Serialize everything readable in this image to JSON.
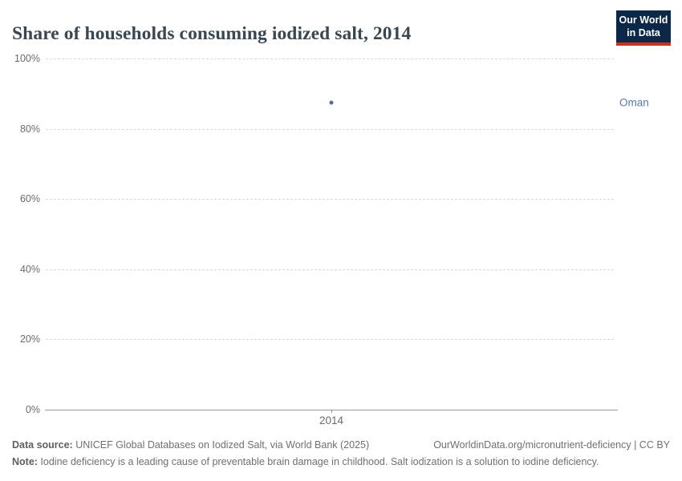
{
  "header": {
    "title": "Share of households consuming iodized salt, 2014",
    "logo": {
      "line1": "Our World",
      "line2": "in Data",
      "bg_color": "#0c2848",
      "accent_color": "#cf2e21"
    }
  },
  "chart_data": {
    "type": "scatter",
    "title": "Share of households consuming iodized salt, 2014",
    "x": [
      2014
    ],
    "xticks": [
      2014
    ],
    "series": [
      {
        "name": "Oman",
        "values": [
          87.5
        ],
        "color": "#4e6d9e",
        "label_color": "#5878ab"
      }
    ],
    "xlabel": "",
    "ylabel": "",
    "ylim": [
      0,
      100
    ],
    "yticks": [
      0,
      20,
      40,
      60,
      80,
      100
    ],
    "ytick_format": "{}%",
    "grid": "horizontal-dashed",
    "legend": "entity-label-right"
  },
  "colors": {
    "title": "#3a4650",
    "axis_text": "#6b6b6b",
    "gridline": "#d9d9d9",
    "axis_line": "#9a9a9a"
  },
  "footer": {
    "data_source_label": "Data source:",
    "data_source_text": " UNICEF Global Databases on Iodized Salt, via World Bank (2025)",
    "attribution": "OurWorldinData.org/micronutrient-deficiency | CC BY",
    "note_label": "Note:",
    "note_text": " Iodine deficiency is a leading cause of preventable brain damage in childhood. Salt iodization is a solution to iodine deficiency."
  }
}
